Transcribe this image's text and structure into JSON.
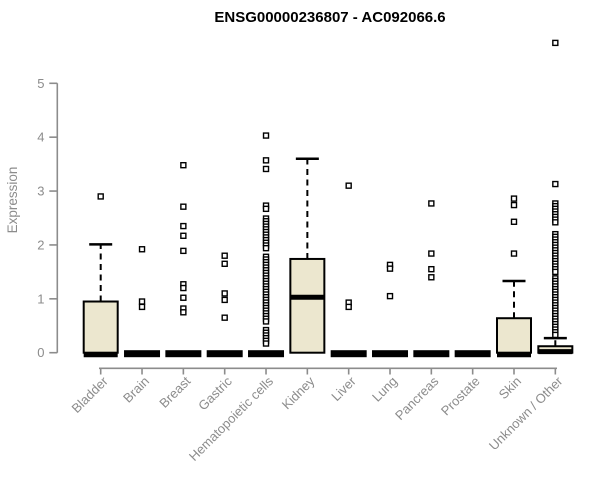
{
  "title": "ENSG00000236807 - AC092066.6",
  "colors": {
    "background": "#ffffff",
    "box_fill": "#ece7cf",
    "box_stroke": "#000000",
    "median": "#000000",
    "whisker": "#000000",
    "outlier_fill": "#ffffff",
    "outlier_stroke": "#000000",
    "axis": "#8c8c8c",
    "label": "#8c8c8c",
    "title": "#000000"
  },
  "chart_data": {
    "type": "boxplot",
    "title": "ENSG00000236807 - AC092066.6",
    "xlabel": "",
    "ylabel": "Expression",
    "ylim": [
      0,
      5.9
    ],
    "y_ticks": [
      0,
      1,
      2,
      3,
      4,
      5
    ],
    "grid": false,
    "categories": [
      "Bladder",
      "Brain",
      "Breast",
      "Gastric",
      "Hematopoietic cells",
      "Kidney",
      "Liver",
      "Lung",
      "Pancreas",
      "Prostate",
      "Skin",
      "Unknown / Other"
    ],
    "series": [
      {
        "category": "Bladder",
        "q1": 0,
        "median": 0,
        "q3": 0.95,
        "whisker_low": 0,
        "whisker_high": 2.01,
        "outliers": [
          2.9
        ]
      },
      {
        "category": "Brain",
        "q1": 0,
        "median": 0,
        "q3": 0,
        "whisker_low": 0,
        "whisker_high": 0,
        "outliers": [
          1.92,
          0.95,
          0.85
        ]
      },
      {
        "category": "Breast",
        "q1": 0,
        "median": 0,
        "q3": 0,
        "whisker_low": 0,
        "whisker_high": 0,
        "outliers": [
          3.48,
          2.71,
          2.35,
          2.17,
          1.89,
          1.27,
          1.2,
          1.02,
          0.82,
          0.75
        ]
      },
      {
        "category": "Gastric",
        "q1": 0,
        "median": 0,
        "q3": 0,
        "whisker_low": 0,
        "whisker_high": 0,
        "outliers": [
          1.8,
          1.65,
          1.1,
          0.98,
          0.65
        ]
      },
      {
        "category": "Hematopoietic cells",
        "q1": 0,
        "median": 0,
        "q3": 0,
        "whisker_low": 0,
        "whisker_high": 0,
        "outliers": [
          4.03,
          3.57,
          3.41,
          2.73,
          2.67,
          2.49,
          2.44,
          2.39,
          2.34,
          2.29,
          2.24,
          2.19,
          2.14,
          2.09,
          2.04,
          1.99,
          1.94,
          1.78,
          1.73,
          1.68,
          1.63,
          1.58,
          1.53,
          1.48,
          1.43,
          1.38,
          1.33,
          1.28,
          1.23,
          1.18,
          1.13,
          1.08,
          1.03,
          0.98,
          0.93,
          0.88,
          0.83,
          0.78,
          0.73,
          0.68,
          0.63,
          0.58,
          0.42,
          0.37,
          0.32,
          0.27,
          0.22,
          0.17
        ]
      },
      {
        "category": "Kidney",
        "q1": 0,
        "median": 1.03,
        "q3": 1.74,
        "whisker_low": 0,
        "whisker_high": 3.6,
        "outliers": []
      },
      {
        "category": "Liver",
        "q1": 0,
        "median": 0,
        "q3": 0,
        "whisker_low": 0,
        "whisker_high": 0,
        "outliers": [
          3.1,
          0.93,
          0.85
        ]
      },
      {
        "category": "Lung",
        "q1": 0,
        "median": 0,
        "q3": 0,
        "whisker_low": 0,
        "whisker_high": 0,
        "outliers": [
          1.63,
          1.56,
          1.05
        ]
      },
      {
        "category": "Pancreas",
        "q1": 0,
        "median": 0,
        "q3": 0,
        "whisker_low": 0,
        "whisker_high": 0,
        "outliers": [
          2.77,
          1.84,
          1.55,
          1.4
        ]
      },
      {
        "category": "Prostate",
        "q1": 0,
        "median": 0,
        "q3": 0,
        "whisker_low": 0,
        "whisker_high": 0,
        "outliers": []
      },
      {
        "category": "Skin",
        "q1": 0,
        "median": 0,
        "q3": 0.64,
        "whisker_low": 0,
        "whisker_high": 1.33,
        "outliers": [
          2.86,
          2.74,
          2.43,
          1.84
        ]
      },
      {
        "category": "Unknown / Other",
        "q1": 0,
        "median": 0.02,
        "q3": 0.12,
        "whisker_low": 0,
        "whisker_high": 0.27,
        "outliers": [
          5.75,
          3.13,
          2.77,
          2.72,
          2.67,
          2.62,
          2.57,
          2.52,
          2.47,
          2.42,
          2.2,
          2.15,
          2.1,
          2.05,
          2.0,
          1.95,
          1.9,
          1.85,
          1.8,
          1.75,
          1.7,
          1.65,
          1.6,
          1.55,
          1.5,
          1.38,
          1.33,
          1.28,
          1.23,
          1.18,
          1.13,
          1.08,
          1.03,
          0.98,
          0.93,
          0.88,
          0.83,
          0.78,
          0.73,
          0.68,
          0.63,
          0.58,
          0.53,
          0.48,
          0.43,
          0.38,
          0.33
        ]
      }
    ]
  }
}
